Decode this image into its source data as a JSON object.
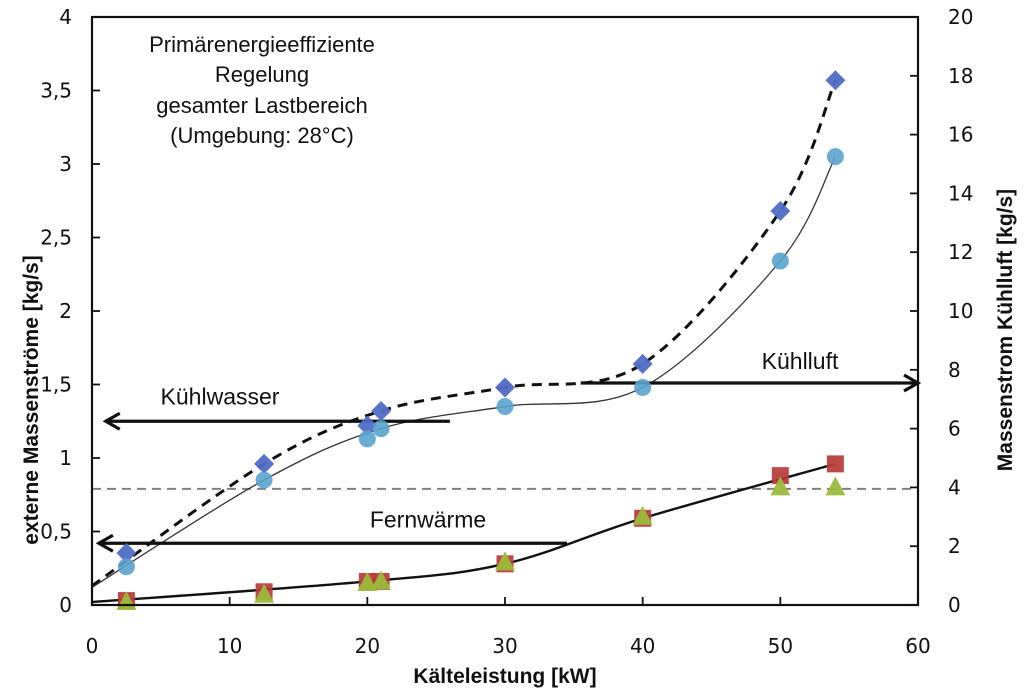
{
  "chart_data": {
    "type": "scatter",
    "title": "",
    "annotation_lines": [
      "Primärenergieeffiziente",
      "Regelung",
      "gesamter Lastbereich",
      "(Umgebung: 28°C)"
    ],
    "xlabel": "Kälteleistung [kW]",
    "ylabel_left": "externe Massenströme  [kg/s]",
    "ylabel_right": "Massenstrom Kühlluft [kg/s]",
    "xlim": [
      0,
      60
    ],
    "ylim_left": [
      0,
      4
    ],
    "ylim_right": [
      0,
      20
    ],
    "x_ticks": [
      "0",
      "10",
      "20",
      "30",
      "40",
      "50",
      "60"
    ],
    "x_tick_values": [
      0,
      10,
      20,
      30,
      40,
      50,
      60
    ],
    "y_left_ticks": [
      "0",
      "0,5",
      "1",
      "1,5",
      "2",
      "2,5",
      "3",
      "3,5",
      "4"
    ],
    "y_left_tick_values": [
      0,
      0.5,
      1,
      1.5,
      2,
      2.5,
      3,
      3.5,
      4
    ],
    "y_right_ticks": [
      "0",
      "2",
      "4",
      "6",
      "8",
      "10",
      "12",
      "14",
      "16",
      "18",
      "20"
    ],
    "y_right_tick_values": [
      0,
      2,
      4,
      6,
      8,
      10,
      12,
      14,
      16,
      18,
      20
    ],
    "grid": false,
    "reference_line": {
      "axis": "left",
      "value": 0.79,
      "style": "dashed",
      "color": "#808080"
    },
    "series": [
      {
        "name": "Kühlluft (diamond)",
        "axis": "right",
        "marker": "diamond",
        "color": "#4F6BC4",
        "trendline": "dashed",
        "x": [
          2.5,
          12.5,
          20,
          21,
          30,
          40,
          50,
          54
        ],
        "y": [
          1.77,
          4.8,
          6.1,
          6.6,
          7.4,
          8.2,
          13.4,
          17.85
        ]
      },
      {
        "name": "Kühlluft (circle)",
        "axis": "right",
        "marker": "circle",
        "color": "#5BA3D0",
        "trendline": "solid-thin",
        "x": [
          2.5,
          12.5,
          20,
          21,
          30,
          40,
          50,
          54
        ],
        "y": [
          1.3,
          4.25,
          5.65,
          6.0,
          6.75,
          7.4,
          11.7,
          15.25
        ]
      },
      {
        "name": "Fernwärme (square)",
        "axis": "left",
        "marker": "square",
        "color": "#B83A3A",
        "trendline": "solid",
        "x": [
          2.5,
          12.5,
          20,
          21,
          30,
          40,
          50,
          54
        ],
        "y": [
          0.03,
          0.09,
          0.16,
          0.16,
          0.28,
          0.59,
          0.88,
          0.96
        ]
      },
      {
        "name": "Fernwärme (triangle)",
        "axis": "left",
        "marker": "triangle",
        "color": "#9BBB3B",
        "trendline": "none",
        "x": [
          2.5,
          12.5,
          20,
          21,
          30,
          40,
          50,
          54
        ],
        "y": [
          0.02,
          0.07,
          0.15,
          0.16,
          0.29,
          0.6,
          0.8,
          0.8
        ]
      }
    ],
    "arrows": [
      {
        "label": "Kühlwasser",
        "direction": "left",
        "y_left": 1.25,
        "x_from": 26,
        "x_to": 1
      },
      {
        "label": "Fernwärme",
        "direction": "left",
        "y_left": 0.42,
        "x_from": 34.5,
        "x_to": 0.5
      },
      {
        "label": "Kühlluft",
        "direction": "right",
        "y_left": 1.51,
        "x_from": 35.5,
        "x_to": 60
      }
    ]
  }
}
